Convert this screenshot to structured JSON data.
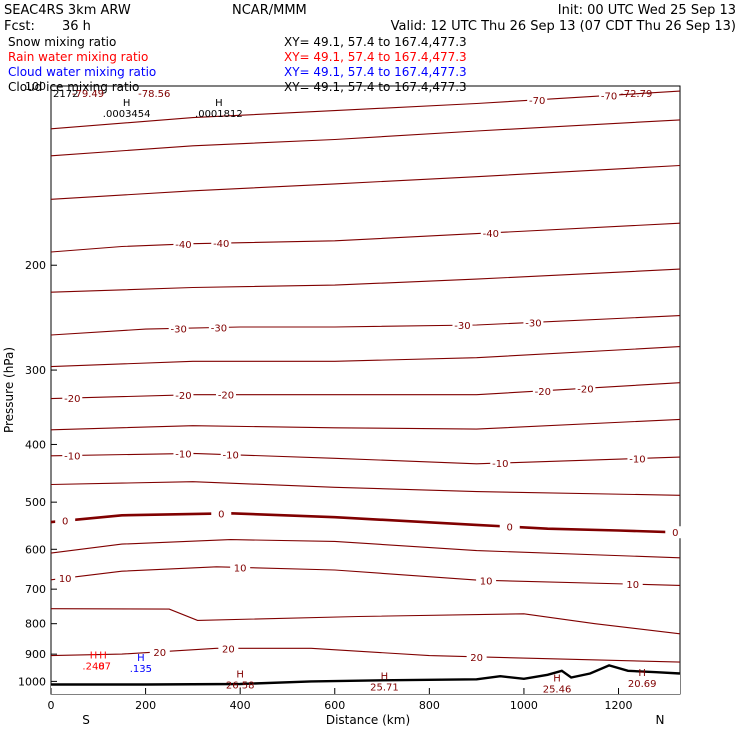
{
  "header": {
    "model": "SEAC4RS   3km ARW",
    "center": "NCAR/MMM",
    "init": "Init: 00 UTC Wed 25 Sep 13",
    "fcst_label": "Fcst:",
    "fcst_value": "36 h",
    "valid": "Valid: 12 UTC Thu 26 Sep 13 (07 CDT Thu 26 Sep 13)"
  },
  "fields": [
    {
      "name": "Snow mixing ratio",
      "xy": "XY=  49.1, 57.4 to 167.4,477.3",
      "color": "#000000"
    },
    {
      "name": "Rain water mixing ratio",
      "xy": "XY=  49.1, 57.4 to 167.4,477.3",
      "color": "#ff0000"
    },
    {
      "name": "Cloud water mixing ratio",
      "xy": "XY=  49.1, 57.4 to 167.4,477.3",
      "color": "#0000ff"
    },
    {
      "name": "Cloud ice mixing ratio",
      "xy": "XY=  49.1, 57.4 to 167.4,477.3",
      "color": "#000000"
    }
  ],
  "colors": {
    "temperature": "#800000",
    "zero_line": "#800000",
    "rain": "#ff0000",
    "cloud_water": "#0000ff",
    "terrain": "#000000"
  },
  "chart_data": {
    "type": "line",
    "xlabel": "Distance (km)",
    "ylabel": "Pressure (hPa)",
    "xlim": [
      0,
      1330
    ],
    "ylim": [
      1050,
      100
    ],
    "y_scale": "log",
    "x_ticks": [
      0,
      200,
      400,
      600,
      800,
      1000,
      1200
    ],
    "y_ticks": [
      100,
      200,
      300,
      400,
      500,
      600,
      700,
      800,
      900,
      1000
    ],
    "x_end_labels": {
      "left": "S",
      "right": "N"
    },
    "temperature_contours_C": [
      {
        "value": -70,
        "points": [
          [
            0,
            118
          ],
          [
            300,
            113
          ],
          [
            600,
            110
          ],
          [
            900,
            107
          ],
          [
            1330,
            102
          ]
        ],
        "labels": [
          {
            "x": 1028,
            "text": "-70"
          },
          {
            "x": 1180,
            "text": "-70"
          }
        ]
      },
      {
        "value": -60,
        "points": [
          [
            0,
            131
          ],
          [
            300,
            126
          ],
          [
            600,
            123
          ],
          [
            900,
            119
          ],
          [
            1330,
            114
          ]
        ],
        "labels": []
      },
      {
        "value": -50,
        "points": [
          [
            0,
            155
          ],
          [
            300,
            150
          ],
          [
            600,
            146
          ],
          [
            900,
            142
          ],
          [
            1330,
            136
          ]
        ],
        "labels": []
      },
      {
        "value": -40,
        "points": [
          [
            0,
            190
          ],
          [
            150,
            186
          ],
          [
            300,
            184
          ],
          [
            600,
            182
          ],
          [
            900,
            177
          ],
          [
            1330,
            170
          ]
        ],
        "labels": [
          {
            "x": 280,
            "text": "-40"
          },
          {
            "x": 360,
            "text": "-40"
          },
          {
            "x": 930,
            "text": "-40"
          }
        ]
      },
      {
        "value": -35,
        "points": [
          [
            0,
            222
          ],
          [
            300,
            218
          ],
          [
            600,
            216
          ],
          [
            900,
            211
          ],
          [
            1330,
            203
          ]
        ],
        "labels": []
      },
      {
        "value": -30,
        "points": [
          [
            0,
            262
          ],
          [
            200,
            256
          ],
          [
            400,
            254
          ],
          [
            600,
            254
          ],
          [
            900,
            252
          ],
          [
            1330,
            243
          ]
        ],
        "labels": [
          {
            "x": 270,
            "text": "-30"
          },
          {
            "x": 355,
            "text": "-30"
          },
          {
            "x": 870,
            "text": "-30"
          },
          {
            "x": 1020,
            "text": "-30"
          }
        ]
      },
      {
        "value": -25,
        "points": [
          [
            0,
            296
          ],
          [
            300,
            290
          ],
          [
            600,
            290
          ],
          [
            900,
            286
          ],
          [
            1330,
            274
          ]
        ],
        "labels": []
      },
      {
        "value": -20,
        "points": [
          [
            0,
            335
          ],
          [
            300,
            330
          ],
          [
            600,
            330
          ],
          [
            900,
            330
          ],
          [
            1330,
            315
          ]
        ],
        "labels": [
          {
            "x": 45,
            "text": "-20"
          },
          {
            "x": 280,
            "text": "-20"
          },
          {
            "x": 370,
            "text": "-20"
          },
          {
            "x": 1040,
            "text": "-20"
          },
          {
            "x": 1130,
            "text": "-20"
          }
        ]
      },
      {
        "value": -15,
        "points": [
          [
            0,
            378
          ],
          [
            300,
            372
          ],
          [
            600,
            375
          ],
          [
            900,
            377
          ],
          [
            1330,
            363
          ]
        ],
        "labels": []
      },
      {
        "value": -10,
        "points": [
          [
            0,
            418
          ],
          [
            300,
            414
          ],
          [
            600,
            422
          ],
          [
            900,
            431
          ],
          [
            1330,
            420
          ]
        ],
        "labels": [
          {
            "x": 45,
            "text": "-10"
          },
          {
            "x": 280,
            "text": "-10"
          },
          {
            "x": 380,
            "text": "-10"
          },
          {
            "x": 950,
            "text": "-10"
          },
          {
            "x": 1240,
            "text": "-10"
          }
        ]
      },
      {
        "value": -5,
        "points": [
          [
            0,
            467
          ],
          [
            300,
            462
          ],
          [
            600,
            472
          ],
          [
            900,
            480
          ],
          [
            1330,
            487
          ]
        ],
        "labels": []
      },
      {
        "value": 0,
        "bold": true,
        "points": [
          [
            0,
            540
          ],
          [
            150,
            526
          ],
          [
            380,
            522
          ],
          [
            600,
            530
          ],
          [
            900,
            546
          ],
          [
            1050,
            554
          ],
          [
            1200,
            558
          ],
          [
            1330,
            562
          ]
        ],
        "labels": [
          {
            "x": 30,
            "text": "0"
          },
          {
            "x": 360,
            "text": "0"
          },
          {
            "x": 970,
            "text": "0"
          },
          {
            "x": 1320,
            "text": "0"
          }
        ]
      },
      {
        "value": 5,
        "points": [
          [
            0,
            609
          ],
          [
            150,
            588
          ],
          [
            380,
            578
          ],
          [
            600,
            582
          ],
          [
            900,
            603
          ],
          [
            1330,
            620
          ]
        ],
        "labels": []
      },
      {
        "value": 10,
        "points": [
          [
            0,
            675
          ],
          [
            150,
            653
          ],
          [
            350,
            642
          ],
          [
            600,
            650
          ],
          [
            900,
            676
          ],
          [
            1330,
            690
          ]
        ],
        "labels": [
          {
            "x": 30,
            "text": "10"
          },
          {
            "x": 400,
            "text": "10"
          },
          {
            "x": 920,
            "text": "10"
          },
          {
            "x": 1230,
            "text": "10"
          }
        ]
      },
      {
        "value": 15,
        "points": [
          [
            0,
            755
          ],
          [
            250,
            756
          ],
          [
            310,
            790
          ],
          [
            650,
            778
          ],
          [
            1000,
            770
          ],
          [
            1150,
            800
          ],
          [
            1330,
            832
          ]
        ],
        "labels": []
      },
      {
        "value": 20,
        "points": [
          [
            0,
            905
          ],
          [
            150,
            900
          ],
          [
            350,
            880
          ],
          [
            550,
            880
          ],
          [
            800,
            905
          ],
          [
            1050,
            916
          ],
          [
            1330,
            928
          ]
        ],
        "labels": [
          {
            "x": 230,
            "text": "20"
          },
          {
            "x": 375,
            "text": "20"
          },
          {
            "x": 900,
            "text": "20"
          }
        ]
      }
    ],
    "rain_water": [
      {
        "label": "H",
        "value": ".248",
        "x": 90,
        "p": 915
      },
      {
        "label": "H",
        "value": ".07",
        "x": 110,
        "p": 915
      }
    ],
    "cloud_water": [
      {
        "label": "H",
        "value": ".135",
        "x": 190,
        "p": 925
      }
    ],
    "cloud_ice": [
      {
        "label": "H",
        "value": ".0003454",
        "x": 160,
        "p": 108
      },
      {
        "label": "H",
        "value": ".0001812",
        "x": 355,
        "p": 108
      }
    ],
    "temperature_extrema": [
      {
        "label": "H",
        "value": "26.58",
        "x": 400,
        "p": 985
      },
      {
        "label": "H",
        "value": "25.71",
        "x": 705,
        "p": 992
      },
      {
        "label": "H",
        "value": "25.46",
        "x": 1070,
        "p": 1000
      },
      {
        "label": "H",
        "value": "20.69",
        "x": 1250,
        "p": 980
      }
    ],
    "top_values": [
      "2172",
      "-79.49",
      "-78.56",
      "-72.79"
    ],
    "terrain_surface_hPa": [
      [
        0,
        1012
      ],
      [
        200,
        1012
      ],
      [
        400,
        1010
      ],
      [
        550,
        1000
      ],
      [
        700,
        996
      ],
      [
        800,
        994
      ],
      [
        900,
        992
      ],
      [
        950,
        980
      ],
      [
        1000,
        990
      ],
      [
        1050,
        975
      ],
      [
        1080,
        960
      ],
      [
        1100,
        985
      ],
      [
        1140,
        970
      ],
      [
        1180,
        940
      ],
      [
        1220,
        960
      ],
      [
        1280,
        965
      ],
      [
        1330,
        970
      ]
    ]
  }
}
